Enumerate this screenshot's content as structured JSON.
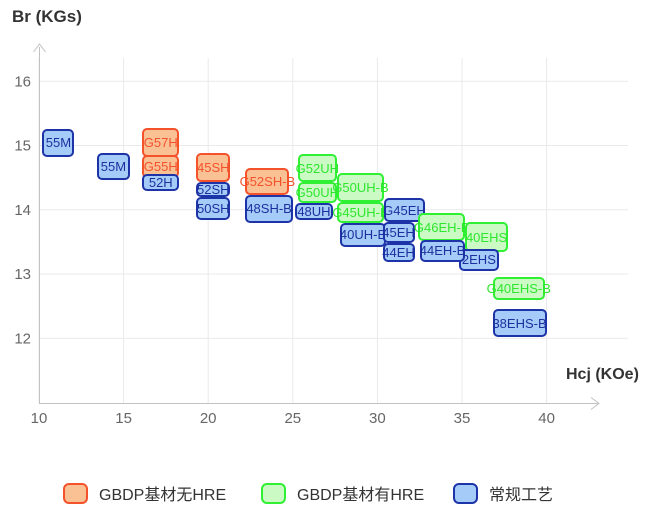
{
  "chart_data": {
    "type": "scatter",
    "title": "",
    "xlabel": "Hcj (KOe)",
    "ylabel": "Br (KGs)",
    "xlim": [
      10,
      45
    ],
    "ylim": [
      11,
      16.5
    ],
    "x_ticks": [
      10,
      15,
      20,
      25,
      30,
      35,
      40
    ],
    "y_ticks": [
      12,
      13,
      14,
      15,
      16
    ],
    "grid": true,
    "legend_position": "bottom",
    "series": [
      {
        "id": "gbdp_no_hre",
        "label": "GBDP基材无HRE",
        "fill": "#FAC195",
        "stroke": "#F4522B",
        "text": "#F4512B"
      },
      {
        "id": "gbdp_hre",
        "label": "GBDP基材有HRE",
        "fill": "#CBFAC5",
        "stroke": "#2FF033",
        "text": "#2EE62E"
      },
      {
        "id": "conventional",
        "label": "常规工艺",
        "fill": "#A5CCF8",
        "stroke": "#1D33A8",
        "text": "#1D2F9E"
      }
    ],
    "points": [
      {
        "label": "55M",
        "series": "conventional",
        "hcj": [
          10.2,
          12.1
        ],
        "br": [
          14.82,
          15.26
        ]
      },
      {
        "label": "55M",
        "series": "conventional",
        "hcj": [
          13.4,
          15.4
        ],
        "br": [
          14.46,
          14.88
        ]
      },
      {
        "label": "G57H",
        "series": "gbdp_no_hre",
        "hcj": [
          16.1,
          18.3
        ],
        "br": [
          14.82,
          15.27
        ]
      },
      {
        "label": "G55H",
        "series": "gbdp_no_hre",
        "hcj": [
          16.1,
          18.3
        ],
        "br": [
          14.49,
          14.85
        ]
      },
      {
        "label": "52H",
        "series": "conventional",
        "hcj": [
          16.1,
          18.3
        ],
        "br": [
          14.29,
          14.55
        ]
      },
      {
        "label": "45SH",
        "series": "gbdp_no_hre",
        "hcj": [
          19.3,
          21.3
        ],
        "br": [
          14.43,
          14.88
        ]
      },
      {
        "label": "52SH",
        "series": "conventional",
        "hcj": [
          19.3,
          21.3
        ],
        "br": [
          14.2,
          14.43
        ]
      },
      {
        "label": "50SH",
        "series": "conventional",
        "hcj": [
          19.3,
          21.3
        ],
        "br": [
          13.84,
          14.2
        ]
      },
      {
        "label": "G52SH-B",
        "series": "gbdp_no_hre",
        "hcj": [
          22.2,
          24.8
        ],
        "br": [
          14.23,
          14.65
        ]
      },
      {
        "label": "48SH-B",
        "series": "conventional",
        "hcj": [
          22.2,
          25.0
        ],
        "br": [
          13.8,
          14.23
        ]
      },
      {
        "label": "G52UH",
        "series": "gbdp_hre",
        "hcj": [
          25.3,
          27.6
        ],
        "br": [
          14.43,
          14.87
        ]
      },
      {
        "label": "G50UH",
        "series": "gbdp_hre",
        "hcj": [
          25.3,
          27.6
        ],
        "br": [
          14.11,
          14.43
        ]
      },
      {
        "label": "48UH",
        "series": "conventional",
        "hcj": [
          25.1,
          27.4
        ],
        "br": [
          13.84,
          14.11
        ]
      },
      {
        "label": "G50UH-B",
        "series": "gbdp_hre",
        "hcj": [
          27.6,
          30.4
        ],
        "br": [
          14.12,
          14.57
        ]
      },
      {
        "label": "G45UH-B",
        "series": "gbdp_hre",
        "hcj": [
          27.6,
          30.4
        ],
        "br": [
          13.8,
          14.12
        ]
      },
      {
        "label": "40UH-B",
        "series": "conventional",
        "hcj": [
          27.8,
          30.5
        ],
        "br": [
          13.42,
          13.8
        ]
      },
      {
        "label": "G45EH",
        "series": "conventional",
        "hcj": [
          30.4,
          32.8
        ],
        "br": [
          13.81,
          14.18
        ]
      },
      {
        "label": "45EH",
        "series": "conventional",
        "hcj": [
          30.3,
          32.2
        ],
        "br": [
          13.48,
          13.81
        ]
      },
      {
        "label": "44EH",
        "series": "conventional",
        "hcj": [
          30.3,
          32.2
        ],
        "br": [
          13.19,
          13.48
        ]
      },
      {
        "label": "G46EH-B",
        "series": "gbdp_hre",
        "hcj": [
          32.4,
          35.2
        ],
        "br": [
          13.51,
          13.95
        ]
      },
      {
        "label": "40EHS",
        "series": "gbdp_hre",
        "hcj": [
          35.2,
          37.7
        ],
        "br": [
          13.34,
          13.81
        ]
      },
      {
        "label": "2EHS",
        "series": "conventional",
        "hcj": [
          34.8,
          37.2
        ],
        "br": [
          13.05,
          13.39
        ]
      },
      {
        "label": "44EH-B",
        "series": "conventional",
        "hcj": [
          32.5,
          35.2
        ],
        "br": [
          13.19,
          13.53
        ]
      },
      {
        "label": "G40EHS-B",
        "series": "gbdp_hre",
        "hcj": [
          36.8,
          39.9
        ],
        "br": [
          12.6,
          12.95
        ]
      },
      {
        "label": "38EHS-B",
        "series": "conventional",
        "hcj": [
          36.8,
          40.0
        ],
        "br": [
          12.02,
          12.45
        ]
      }
    ],
    "axis_color": "#c2c2c2",
    "gridline_color": "#e9e9e9",
    "tick_color": "#666666",
    "title_color": "#333333"
  }
}
